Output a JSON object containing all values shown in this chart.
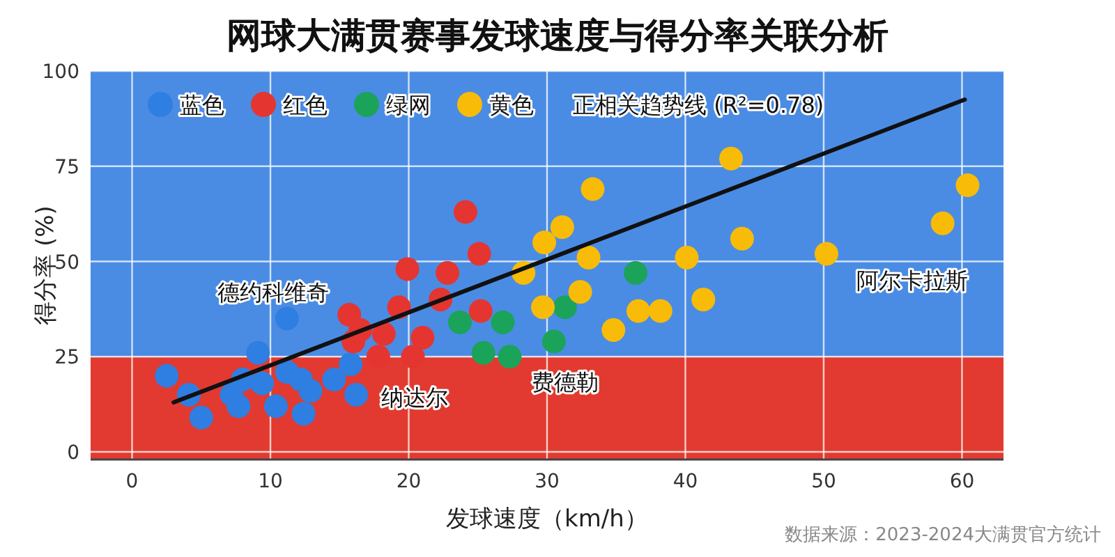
{
  "chart_data": {
    "type": "scatter",
    "title": "网球大满贯赛事发球速度与得分率关联分析",
    "xlabel": "发球速度（km/h）",
    "ylabel": "得分率 (%)",
    "xlim": [
      -3,
      63
    ],
    "ylim": [
      -2,
      100
    ],
    "xticks": [
      0,
      10,
      20,
      30,
      40,
      50,
      60
    ],
    "yticks": [
      0,
      25,
      50,
      75,
      100
    ],
    "grid": true,
    "legend": "top left",
    "marker": "circle",
    "bands": [
      {
        "axis": "y",
        "from": -2,
        "to": 25,
        "color": "#e23a30"
      },
      {
        "axis": "y",
        "from": 25,
        "to": 100,
        "color": "#4a8ce4"
      }
    ],
    "series": [
      {
        "name": "蓝色",
        "color": "#2f7ee2",
        "x": [
          2.5,
          4.1,
          5.0,
          7.2,
          7.7,
          8.0,
          9.1,
          9.4,
          10.4,
          11.2,
          11.2,
          12.2,
          12.4,
          12.9,
          14.6,
          15.8,
          16.2
        ],
        "values": [
          20,
          15,
          9,
          15,
          12,
          19,
          26,
          18,
          12,
          35,
          21,
          19,
          10,
          16,
          19,
          23,
          15
        ]
      },
      {
        "name": "红色",
        "color": "#e53530",
        "x": [
          15.7,
          16.5,
          16.0,
          18.2,
          17.8,
          19.3,
          19.9,
          20.3,
          21.0,
          22.3,
          22.8,
          24.1,
          25.1,
          25.2
        ],
        "values": [
          36,
          32,
          29,
          31,
          25,
          38,
          48,
          25,
          30,
          40,
          47,
          63,
          52,
          37
        ]
      },
      {
        "name": "绿网",
        "color": "#1ba35a",
        "x": [
          23.7,
          25.4,
          26.8,
          27.3,
          30.5,
          31.3,
          36.4
        ],
        "values": [
          34,
          26,
          34,
          25,
          29,
          38,
          47
        ]
      },
      {
        "name": "黄色",
        "color": "#f8bb08",
        "x": [
          28.3,
          29.7,
          29.8,
          31.1,
          32.4,
          33.0,
          33.3,
          34.8,
          36.6,
          38.2,
          40.1,
          41.3,
          43.3,
          44.1,
          50.2,
          58.6,
          60.4
        ],
        "values": [
          47,
          38,
          55,
          59,
          42,
          51,
          69,
          32,
          37,
          37,
          51,
          40,
          77,
          56,
          52,
          60,
          70
        ]
      },
      {
        "name": "正相关趋势线 (R²=0.78)",
        "type": "line",
        "marker": "none",
        "color": "#111111",
        "x": [
          3.0,
          60.2
        ],
        "values": [
          13,
          92.5
        ]
      }
    ],
    "annotations": [
      "德约科维奇",
      "纳达尔",
      "费德勒",
      "阿尔卡拉斯",
      "数据来源：2023-2024大满贯官方统计"
    ]
  }
}
